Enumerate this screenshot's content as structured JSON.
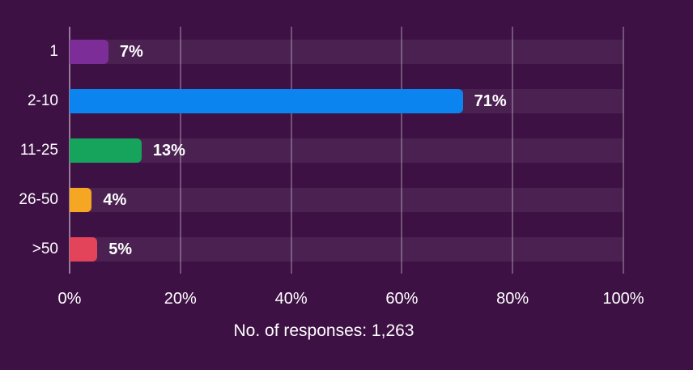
{
  "chart_data": {
    "type": "bar",
    "orientation": "horizontal",
    "title": "",
    "categories": [
      "1",
      "2-10",
      "11-25",
      "26-50",
      ">50"
    ],
    "values": [
      7,
      71,
      13,
      4,
      5
    ],
    "value_labels": [
      "7%",
      "71%",
      "13%",
      "4%",
      "5%"
    ],
    "bar_colors": [
      "#7d2d98",
      "#0b84f0",
      "#16a35c",
      "#f5a623",
      "#e4445a"
    ],
    "x_ticks": [
      "0%",
      "20%",
      "40%",
      "60%",
      "80%",
      "100%"
    ],
    "x_tick_values": [
      0,
      20,
      40,
      60,
      80,
      100
    ],
    "xlim": [
      0,
      100
    ],
    "grid": "vertical-gridlines-on",
    "legend": "none",
    "caption": "No. of responses: 1,263"
  },
  "colors": {
    "background": "#3E1145",
    "row_track": "rgba(255,255,255,0.07)",
    "gridline": "rgba(255,255,255,0.28)",
    "axis_line": "rgba(255,255,255,0.45)",
    "text": "#FFFFFF"
  }
}
